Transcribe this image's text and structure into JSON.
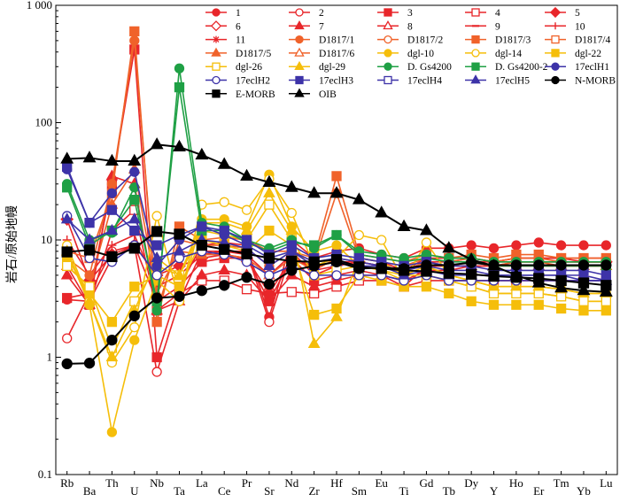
{
  "chart_data": {
    "type": "line",
    "title": "",
    "xlabel": "",
    "ylabel": "岩石/原始地幔",
    "y_scale": "log",
    "ylim": [
      0.1,
      1000
    ],
    "y_ticks": [
      "0.1",
      "1",
      "10",
      "100",
      "1 000"
    ],
    "grid": false,
    "legend_position": "top-right",
    "categories": [
      "Rb",
      "Ba",
      "Th",
      "U",
      "Nb",
      "Ta",
      "La",
      "Ce",
      "Pr",
      "Sr",
      "Nd",
      "Zr",
      "Hf",
      "Sm",
      "Eu",
      "Ti",
      "Gd",
      "Tb",
      "Dy",
      "Y",
      "Ho",
      "Er",
      "Tm",
      "Yb",
      "Lu"
    ],
    "legend": [
      {
        "name": "1",
        "color": "#e8262a",
        "marker": "circle",
        "fill": true
      },
      {
        "name": "2",
        "color": "#e8262a",
        "marker": "circle",
        "fill": false
      },
      {
        "name": "3",
        "color": "#e8262a",
        "marker": "square",
        "fill": true
      },
      {
        "name": "4",
        "color": "#e8262a",
        "marker": "square",
        "fill": false
      },
      {
        "name": "5",
        "color": "#e8262a",
        "marker": "diamond",
        "fill": true
      },
      {
        "name": "6",
        "color": "#e8262a",
        "marker": "diamond",
        "fill": false
      },
      {
        "name": "7",
        "color": "#e8262a",
        "marker": "triangle",
        "fill": true
      },
      {
        "name": "8",
        "color": "#e8262a",
        "marker": "triangle",
        "fill": false
      },
      {
        "name": "9",
        "color": "#e8262a",
        "marker": "dash",
        "fill": true
      },
      {
        "name": "10",
        "color": "#e8262a",
        "marker": "plus",
        "fill": false
      },
      {
        "name": "11",
        "color": "#e8262a",
        "marker": "star",
        "fill": false
      },
      {
        "name": "D1817/1",
        "color": "#f0622a",
        "marker": "circle",
        "fill": true
      },
      {
        "name": "D1817/2",
        "color": "#f0622a",
        "marker": "circle",
        "fill": false
      },
      {
        "name": "D1817/3",
        "color": "#f0622a",
        "marker": "square",
        "fill": true
      },
      {
        "name": "D1817/4",
        "color": "#f0622a",
        "marker": "square",
        "fill": false
      },
      {
        "name": "D1817/5",
        "color": "#f0622a",
        "marker": "triangle",
        "fill": true
      },
      {
        "name": "D1817/6",
        "color": "#f0622a",
        "marker": "triangle",
        "fill": false
      },
      {
        "name": "dgl-10",
        "color": "#f5be0a",
        "marker": "circle",
        "fill": true
      },
      {
        "name": "dgl-14",
        "color": "#f5be0a",
        "marker": "circle",
        "fill": false
      },
      {
        "name": "dgl-22",
        "color": "#f5be0a",
        "marker": "square",
        "fill": true
      },
      {
        "name": "dgl-26",
        "color": "#f5be0a",
        "marker": "square",
        "fill": false
      },
      {
        "name": "dgl-29",
        "color": "#f5be0a",
        "marker": "triangle",
        "fill": true
      },
      {
        "name": "D. Gs4200",
        "color": "#1fa045",
        "marker": "circle",
        "fill": true
      },
      {
        "name": "D. Gs4200-2",
        "color": "#1fa045",
        "marker": "square",
        "fill": true
      },
      {
        "name": "17eclH1",
        "color": "#3d33a8",
        "marker": "circle",
        "fill": true
      },
      {
        "name": "17eclH2",
        "color": "#3d33a8",
        "marker": "circle",
        "fill": false
      },
      {
        "name": "17eclH3",
        "color": "#3d33a8",
        "marker": "square",
        "fill": true
      },
      {
        "name": "17eclH4",
        "color": "#3d33a8",
        "marker": "square",
        "fill": false
      },
      {
        "name": "17eclH5",
        "color": "#3d33a8",
        "marker": "triangle",
        "fill": true
      },
      {
        "name": "N-MORB",
        "color": "#000000",
        "marker": "circle",
        "fill": true
      },
      {
        "name": "E-MORB",
        "color": "#000000",
        "marker": "square",
        "fill": true
      },
      {
        "name": "OIB",
        "color": "#000000",
        "marker": "triangle",
        "fill": true
      }
    ],
    "series": [
      {
        "name": "1",
        "color": "#e8262a",
        "marker": "circle",
        "fill": true,
        "values": [
          3.1,
          3,
          7,
          9,
          3,
          4,
          9,
          9.5,
          9,
          2.2,
          10,
          7,
          8,
          8.5,
          7.5,
          7,
          8.5,
          8.5,
          9,
          8.5,
          9,
          9.5,
          9,
          9,
          9
        ]
      },
      {
        "name": "2",
        "color": "#e8262a",
        "marker": "circle",
        "fill": false,
        "values": [
          1.45,
          3.5,
          8,
          9,
          0.75,
          3,
          8,
          8,
          8,
          2,
          8,
          5,
          6,
          7,
          6.5,
          5.5,
          7,
          7,
          7,
          6.5,
          7,
          7,
          7,
          6.5,
          6.5
        ]
      },
      {
        "name": "3",
        "color": "#e8262a",
        "marker": "square",
        "fill": true,
        "values": [
          3.2,
          3.5,
          30,
          420,
          1,
          4,
          6.5,
          7,
          7,
          3,
          7,
          4.5,
          5,
          5.5,
          5,
          4,
          6,
          6,
          6,
          6,
          6.5,
          6.5,
          6.5,
          6.5,
          6.5
        ]
      },
      {
        "name": "4",
        "color": "#e8262a",
        "marker": "square",
        "fill": false,
        "values": [
          6,
          2.8,
          12,
          18,
          2.5,
          3.5,
          4.5,
          4.5,
          3.8,
          3.5,
          3.6,
          3.5,
          4,
          4.5,
          4.5,
          4,
          4.5,
          4.5,
          4.5,
          4.5,
          4.5,
          4.5,
          4.5,
          4.5,
          4.5
        ]
      },
      {
        "name": "5",
        "color": "#e8262a",
        "marker": "diamond",
        "fill": true,
        "values": [
          15,
          4.5,
          7.5,
          9,
          5,
          6,
          7,
          7.5,
          7,
          3.5,
          7,
          6,
          6.5,
          6.5,
          6,
          5.5,
          6,
          6,
          6.5,
          6.5,
          6.5,
          6.5,
          6.5,
          6.5,
          6.5
        ]
      },
      {
        "name": "7",
        "color": "#e8262a",
        "marker": "triangle",
        "fill": true,
        "values": [
          5,
          2.8,
          35,
          30,
          2.5,
          3,
          5,
          5.5,
          5,
          3,
          5,
          4,
          4.5,
          5,
          5,
          4.5,
          5.5,
          5.5,
          6,
          6,
          6,
          6,
          6,
          6,
          6
        ]
      },
      {
        "name": "10",
        "color": "#e8262a",
        "marker": "plus",
        "fill": false,
        "values": [
          10,
          5,
          9,
          11,
          4,
          5,
          7.5,
          8,
          7.5,
          5,
          7.5,
          5.5,
          6,
          6.5,
          6,
          5.5,
          6.5,
          6.5,
          7,
          6.5,
          7,
          7,
          7,
          7,
          7
        ]
      },
      {
        "name": "D1817/3",
        "color": "#f0622a",
        "marker": "square",
        "fill": true,
        "values": [
          8,
          7,
          25,
          600,
          2,
          13,
          10,
          10.5,
          10,
          8,
          8,
          7,
          35,
          7.5,
          7,
          6.5,
          7.5,
          7,
          7.5,
          7,
          7.5,
          7.5,
          7,
          7,
          7
        ]
      },
      {
        "name": "D1817/1",
        "color": "#f0622a",
        "marker": "circle",
        "fill": true,
        "values": [
          7,
          5,
          30,
          500,
          2.5,
          10,
          9,
          9,
          8.5,
          6,
          8,
          6.5,
          25,
          7,
          6.5,
          6,
          7,
          6.5,
          7,
          6.5,
          7,
          7,
          6.5,
          6.5,
          6.5
        ]
      },
      {
        "name": "D1817/5",
        "color": "#f0622a",
        "marker": "triangle",
        "fill": true,
        "values": [
          6,
          4,
          20,
          40,
          3.5,
          8,
          7.5,
          7.5,
          7,
          5,
          7,
          5.5,
          7,
          6.5,
          6,
          5.5,
          6.5,
          6,
          6.5,
          6,
          6.5,
          6.5,
          6,
          6,
          6
        ]
      },
      {
        "name": "dgl-10",
        "color": "#f5be0a",
        "marker": "circle",
        "fill": true,
        "values": [
          8,
          2.8,
          0.23,
          1.4,
          4.5,
          3,
          15,
          15,
          13,
          36,
          13,
          8,
          9,
          6,
          5.5,
          5,
          5,
          4.5,
          4,
          3.5,
          3.5,
          3.5,
          3.3,
          3,
          3
        ]
      },
      {
        "name": "dgl-14",
        "color": "#f5be0a",
        "marker": "circle",
        "fill": false,
        "values": [
          9,
          3,
          0.9,
          1.8,
          16,
          3,
          20,
          21,
          18,
          33,
          17,
          6,
          7,
          11,
          10,
          4.5,
          9.5,
          5,
          4.5,
          4,
          4,
          4,
          3.8,
          3.5,
          3.5
        ]
      },
      {
        "name": "dgl-22",
        "color": "#f5be0a",
        "marker": "square",
        "fill": true,
        "values": [
          7,
          3.5,
          2,
          4,
          5,
          4,
          10,
          9,
          8,
          12,
          9,
          2.3,
          2.6,
          5,
          4.5,
          4,
          4,
          3.5,
          3,
          2.8,
          2.8,
          2.8,
          2.6,
          2.5,
          2.5
        ]
      },
      {
        "name": "dgl-26",
        "color": "#f5be0a",
        "marker": "square",
        "fill": false,
        "values": [
          6,
          4,
          1.2,
          3,
          6,
          5,
          12,
          11,
          10,
          20,
          10,
          5,
          5.5,
          6,
          5.5,
          4.5,
          5,
          4.5,
          4,
          3.5,
          3.5,
          3.5,
          3.3,
          3,
          3
        ]
      },
      {
        "name": "dgl-29",
        "color": "#f5be0a",
        "marker": "triangle",
        "fill": true,
        "values": [
          8,
          3,
          1,
          2.5,
          7,
          5,
          14,
          14,
          12,
          25,
          12,
          1.3,
          2.2,
          7,
          6.5,
          5,
          6,
          5,
          4.5,
          4,
          4,
          4,
          3.8,
          3.5,
          3.5
        ]
      },
      {
        "name": "D. Gs4200",
        "color": "#1fa045",
        "marker": "circle",
        "fill": true,
        "values": [
          30,
          10,
          11.5,
          28,
          2.5,
          290,
          14,
          13,
          10,
          8.5,
          10,
          8.5,
          11,
          8,
          7.5,
          7,
          7.5,
          7,
          7,
          6.5,
          6.5,
          6.5,
          6.5,
          6.5,
          6.5
        ]
      },
      {
        "name": "D. Gs4200-2",
        "color": "#1fa045",
        "marker": "square",
        "fill": true,
        "values": [
          28,
          9,
          12,
          22,
          3,
          200,
          12,
          12,
          9.5,
          8,
          9.5,
          9,
          11,
          7.5,
          7,
          6.5,
          7,
          6.5,
          6.5,
          6,
          6,
          6,
          6,
          6,
          6
        ]
      },
      {
        "name": "17eclH1",
        "color": "#3d33a8",
        "marker": "circle",
        "fill": true,
        "values": [
          40,
          14,
          25,
          38,
          6,
          10,
          13,
          11,
          9,
          7,
          8,
          6.5,
          7,
          6.5,
          6,
          5.5,
          6,
          5.5,
          5.5,
          5,
          5,
          5,
          5,
          4.5,
          4.5
        ]
      },
      {
        "name": "17eclH2",
        "color": "#3d33a8",
        "marker": "circle",
        "fill": false,
        "values": [
          16,
          7,
          6.5,
          9,
          5,
          7,
          8,
          7.5,
          6.5,
          5,
          6,
          5,
          5,
          5,
          5,
          4.5,
          5,
          4.5,
          4.5,
          4.5,
          4.5,
          4.5,
          4.5,
          4.5,
          4.5
        ]
      },
      {
        "name": "17eclH3",
        "color": "#3d33a8",
        "marker": "square",
        "fill": true,
        "values": [
          42,
          14,
          18,
          12,
          9,
          11,
          13,
          12,
          10,
          7.5,
          9,
          7,
          7.5,
          7,
          6.5,
          6,
          6.5,
          6,
          6,
          5.5,
          5.5,
          5.5,
          5.5,
          5.5,
          5
        ]
      },
      {
        "name": "17eclH5",
        "color": "#3d33a8",
        "marker": "triangle",
        "fill": true,
        "values": [
          15,
          10,
          12,
          15,
          7,
          8,
          10,
          9.5,
          8.5,
          6,
          8,
          6,
          6.5,
          6,
          6,
          5,
          5.5,
          5,
          5,
          5,
          5,
          5,
          5,
          5,
          4.5
        ]
      },
      {
        "name": "N-MORB",
        "color": "#000000",
        "marker": "circle",
        "fill": true,
        "values": [
          0.88,
          0.89,
          1.4,
          2.25,
          3.2,
          3.3,
          3.7,
          4.1,
          4.8,
          4.2,
          5.5,
          6,
          6.5,
          5.7,
          5.8,
          5.7,
          6.1,
          6.1,
          6.4,
          6.1,
          6.1,
          6.1,
          6.1,
          6.1,
          6.1
        ]
      },
      {
        "name": "E-MORB",
        "color": "#000000",
        "marker": "square",
        "fill": true,
        "values": [
          7.9,
          8.2,
          7.2,
          8.5,
          11.8,
          11.2,
          9,
          8.3,
          7.6,
          7,
          6.6,
          6.5,
          6.8,
          5.9,
          5.7,
          5.5,
          5.4,
          5.2,
          5.1,
          4.9,
          4.8,
          4.7,
          4.5,
          4.3,
          4.1
        ]
      },
      {
        "name": "OIB",
        "color": "#000000",
        "marker": "triangle",
        "fill": true,
        "values": [
          49,
          50,
          47,
          47,
          65,
          62,
          53,
          44,
          35,
          31,
          28,
          25,
          25,
          22,
          17,
          13,
          12,
          8.5,
          6.8,
          6,
          5,
          4.3,
          3.9,
          3.7,
          3.6
        ]
      }
    ]
  }
}
